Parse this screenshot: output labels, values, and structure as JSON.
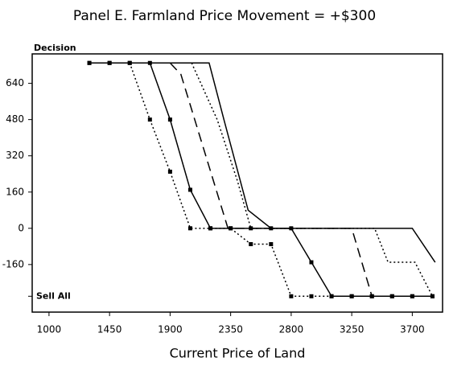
{
  "chart_data": {
    "type": "line",
    "title": "Panel E. Farmland Price Movement = +$300",
    "xlabel": "Current Price of Land",
    "ylabel": "Decision",
    "xlim": [
      875,
      3925
    ],
    "ylim": [
      -370,
      770
    ],
    "xticks": [
      1000,
      1450,
      1900,
      2350,
      2800,
      3250,
      3700
    ],
    "yticks": [
      640,
      480,
      320,
      160,
      0,
      -160,
      {
        "value": -300,
        "label": "Sell All"
      }
    ],
    "grid": false,
    "series": [
      {
        "color": "#000000",
        "style": "dotted",
        "markers": true,
        "x": [
          1300,
          1450,
          1600,
          1750,
          1900,
          2050,
          2200,
          2350,
          2500,
          2650,
          2800,
          2950,
          3100,
          3250,
          3400,
          3550,
          3700,
          3850
        ],
        "values": [
          730,
          730,
          730,
          480,
          250,
          0,
          0,
          0,
          -70,
          -70,
          -300,
          -300,
          -300,
          -300,
          -300,
          -300,
          -300,
          -300
        ]
      },
      {
        "color": "#000000",
        "style": "solid",
        "markers": true,
        "x": [
          1300,
          1450,
          1600,
          1750,
          1900,
          2050,
          2200,
          2350,
          2500,
          2650,
          2800,
          2950,
          3100,
          3250,
          3400,
          3550,
          3700,
          3850
        ],
        "values": [
          730,
          730,
          730,
          730,
          480,
          170,
          0,
          0,
          0,
          0,
          0,
          -150,
          -300,
          -300,
          -300,
          -300,
          -300,
          -300
        ]
      },
      {
        "color": "#000000",
        "style": "dashed",
        "markers": false,
        "x": [
          1900,
          1980,
          2330,
          3250,
          3400
        ],
        "values": [
          730,
          680,
          0,
          0,
          -300
        ]
      },
      {
        "color": "#000000",
        "style": "dotted",
        "markers": false,
        "x": [
          2060,
          2250,
          2400,
          2500,
          3420,
          3520,
          3720,
          3850
        ],
        "values": [
          730,
          480,
          210,
          0,
          0,
          -150,
          -150,
          -300
        ]
      },
      {
        "color": "#000000",
        "style": "solid",
        "markers": false,
        "x": [
          1750,
          2190,
          2300,
          2480,
          2650,
          3700,
          3870
        ],
        "values": [
          730,
          730,
          480,
          80,
          0,
          0,
          -150
        ]
      }
    ]
  }
}
